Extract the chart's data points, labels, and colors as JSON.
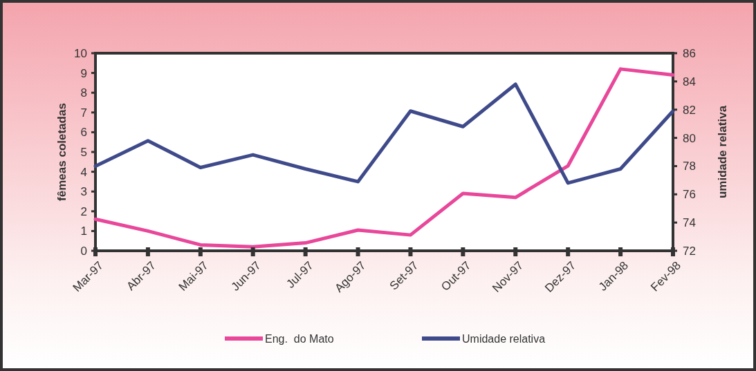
{
  "chart_data": {
    "type": "line",
    "categories": [
      "Mar-97",
      "Abr-97",
      "Mai-97",
      "Jun-97",
      "Jul-97",
      "Ago-97",
      "Set-97",
      "Out-97",
      "Nov-97",
      "Dez-97",
      "Jan-98",
      "Fev-98"
    ],
    "ylabel": "fêmeas coletadas",
    "y2label": "umidade relativa",
    "ylim": [
      0,
      10
    ],
    "yticks": [
      0,
      1,
      2,
      3,
      4,
      5,
      6,
      7,
      8,
      9,
      10
    ],
    "y2lim": [
      72,
      86
    ],
    "y2ticks": [
      72,
      74,
      76,
      78,
      80,
      82,
      84,
      86
    ],
    "legend": "bottom",
    "grid": false,
    "line_style": "solid",
    "series": [
      {
        "name": "Eng.  do Mato",
        "color": "#e8479a",
        "values": [
          1.6,
          1.0,
          0.3,
          0.2,
          0.4,
          1.05,
          0.8,
          2.9,
          2.7,
          4.3,
          9.2,
          8.9
        ]
      },
      {
        "name": "Umidade relativa",
        "color": "#3f4a8a",
        "axis": "y2",
        "values": [
          78,
          79.8,
          77.9,
          78.8,
          77.8,
          76.9,
          81.9,
          80.8,
          83.8,
          76.8,
          77.8,
          81.9
        ]
      }
    ]
  }
}
